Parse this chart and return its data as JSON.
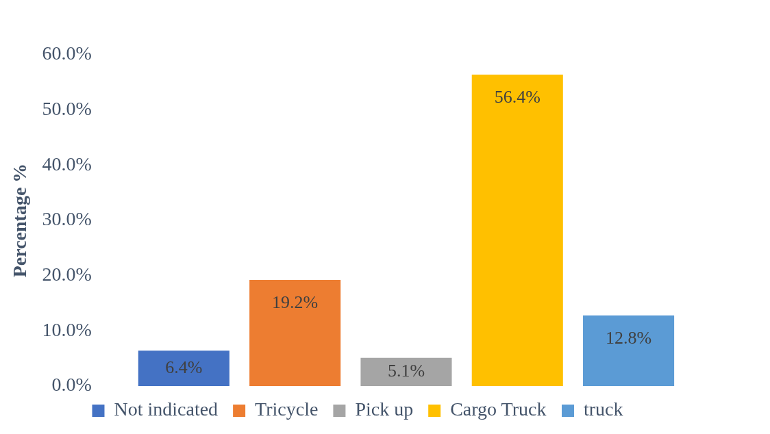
{
  "chart_data": {
    "type": "bar",
    "ylabel": "Percentage %",
    "categories": [
      null
    ],
    "series": [
      {
        "name": "Not indicated",
        "color": "#4472c4",
        "values": [
          6.4
        ],
        "value_labels": [
          "6.4%"
        ]
      },
      {
        "name": "Tricycle",
        "color": "#ed7d31",
        "values": [
          19.2
        ],
        "value_labels": [
          "19.2%"
        ]
      },
      {
        "name": "Pick up",
        "color": "#a5a5a5",
        "values": [
          5.1
        ],
        "value_labels": [
          "5.1%"
        ]
      },
      {
        "name": "Cargo Truck",
        "color": "#ffc000",
        "values": [
          56.4
        ],
        "value_labels": [
          "56.4%"
        ]
      },
      {
        "name": "truck",
        "color": "#5b9bd5",
        "values": [
          12.8
        ],
        "value_labels": [
          "12.8%"
        ]
      }
    ],
    "ylim": [
      0,
      60
    ],
    "yticks": [
      {
        "value": 0,
        "label": "0.0%"
      },
      {
        "value": 10,
        "label": "10.0%"
      },
      {
        "value": 20,
        "label": "20.0%"
      },
      {
        "value": 30,
        "label": "30.0%"
      },
      {
        "value": 40,
        "label": "40.0%"
      },
      {
        "value": 50,
        "label": "50.0%"
      },
      {
        "value": 60,
        "label": "60.0%"
      }
    ],
    "legend": "bottom",
    "grid": false
  }
}
